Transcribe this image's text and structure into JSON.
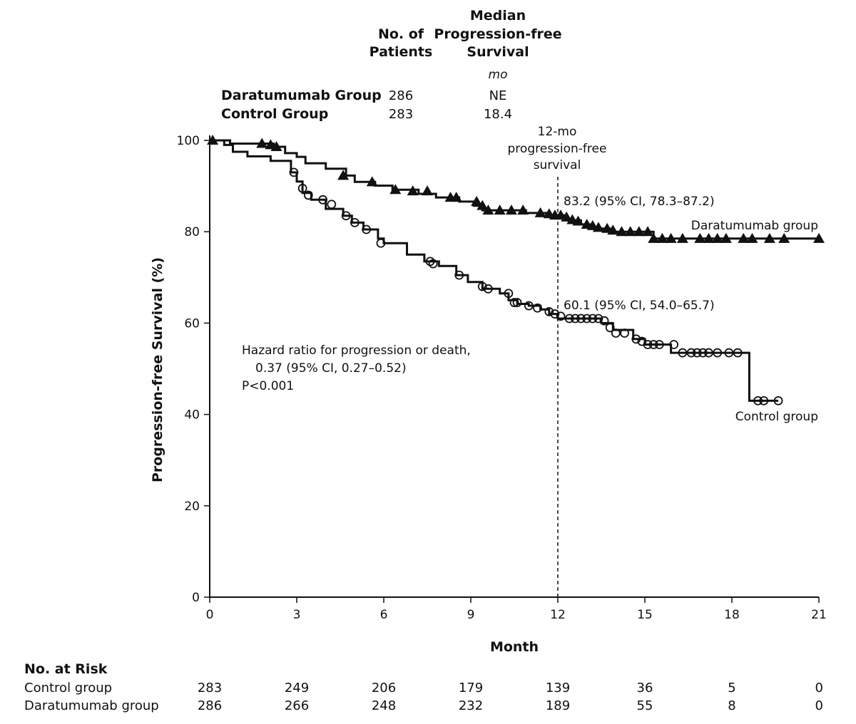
{
  "header": {
    "col_patients": [
      "No. of",
      "Patients"
    ],
    "col_median": [
      "Median",
      "Progression-free",
      "Survival"
    ],
    "unit": "mo",
    "rows": [
      {
        "label": "Daratumumab Group",
        "patients": "286",
        "median": "NE"
      },
      {
        "label": "Control Group",
        "patients": "283",
        "median": "18.4"
      }
    ]
  },
  "annotations": {
    "reference_label": [
      "12-mo",
      "progression-free",
      "survival"
    ],
    "dara_value": "83.2 (95% CI, 78.3–87.2)",
    "control_value": "60.1 (95% CI, 54.0–65.7)",
    "hazard": [
      "Hazard ratio for progression or death,",
      "0.37 (95% CI, 0.27–0.52)",
      "P<0.001"
    ]
  },
  "risk_table": {
    "title": "No. at Risk",
    "months": [
      0,
      3,
      6,
      9,
      12,
      15,
      18,
      21
    ],
    "rows": [
      {
        "label": "Control group",
        "values": [
          "283",
          "249",
          "206",
          "179",
          "139",
          "36",
          "5",
          "0"
        ]
      },
      {
        "label": "Daratumumab group",
        "values": [
          "286",
          "266",
          "248",
          "232",
          "189",
          "55",
          "8",
          "0"
        ]
      }
    ]
  },
  "chart_data": {
    "type": "line",
    "title": "",
    "xlabel": "Month",
    "ylabel": "Progression-free Survival (%)",
    "xlim": [
      0,
      21
    ],
    "ylim": [
      0,
      100
    ],
    "xticks": [
      0,
      3,
      6,
      9,
      12,
      15,
      18,
      21
    ],
    "yticks": [
      0,
      20,
      40,
      60,
      80,
      100
    ],
    "reference_x": 12,
    "series": [
      {
        "name": "Daratumumab group",
        "marker": "triangle",
        "points": [
          [
            0,
            100
          ],
          [
            0.7,
            100
          ],
          [
            0.7,
            99.3
          ],
          [
            2.2,
            99.3
          ],
          [
            2.2,
            98.6
          ],
          [
            2.6,
            98.6
          ],
          [
            2.6,
            97.2
          ],
          [
            3.0,
            97.2
          ],
          [
            3.0,
            96.4
          ],
          [
            3.3,
            96.4
          ],
          [
            3.3,
            95.0
          ],
          [
            4.0,
            95.0
          ],
          [
            4.0,
            93.8
          ],
          [
            4.7,
            93.8
          ],
          [
            4.7,
            92.3
          ],
          [
            5.0,
            92.3
          ],
          [
            5.0,
            90.9
          ],
          [
            5.7,
            90.9
          ],
          [
            5.7,
            90.1
          ],
          [
            6.3,
            90.1
          ],
          [
            6.3,
            89.2
          ],
          [
            7.2,
            89.2
          ],
          [
            7.2,
            88.3
          ],
          [
            7.8,
            88.3
          ],
          [
            7.8,
            87.5
          ],
          [
            8.6,
            87.5
          ],
          [
            8.6,
            86.6
          ],
          [
            9.1,
            86.6
          ],
          [
            9.1,
            85.7
          ],
          [
            9.4,
            85.7
          ],
          [
            9.4,
            84.7
          ],
          [
            10.9,
            84.7
          ],
          [
            10.9,
            84.1
          ],
          [
            11.6,
            84.1
          ],
          [
            11.6,
            83.6
          ],
          [
            12.3,
            83.6
          ],
          [
            12.3,
            82.5
          ],
          [
            12.8,
            82.5
          ],
          [
            12.8,
            81.6
          ],
          [
            13.2,
            81.6
          ],
          [
            13.2,
            80.7
          ],
          [
            13.8,
            80.7
          ],
          [
            13.8,
            80.0
          ],
          [
            15.3,
            80.0
          ],
          [
            15.3,
            78.5
          ],
          [
            21.0,
            78.5
          ]
        ],
        "censored": [
          [
            0.1,
            100
          ],
          [
            1.8,
            99.3
          ],
          [
            2.1,
            99.0
          ],
          [
            2.3,
            98.6
          ],
          [
            4.6,
            92.3
          ],
          [
            5.6,
            90.9
          ],
          [
            6.4,
            89.2
          ],
          [
            7.0,
            88.9
          ],
          [
            7.5,
            88.9
          ],
          [
            8.3,
            87.5
          ],
          [
            8.5,
            87.5
          ],
          [
            9.2,
            86.6
          ],
          [
            9.4,
            85.7
          ],
          [
            9.6,
            84.7
          ],
          [
            10.0,
            84.7
          ],
          [
            10.4,
            84.7
          ],
          [
            10.8,
            84.7
          ],
          [
            11.4,
            84.1
          ],
          [
            11.7,
            83.9
          ],
          [
            11.9,
            83.6
          ],
          [
            12.1,
            83.6
          ],
          [
            12.3,
            83.2
          ],
          [
            12.5,
            82.6
          ],
          [
            12.7,
            82.3
          ],
          [
            13.0,
            81.6
          ],
          [
            13.2,
            81.3
          ],
          [
            13.4,
            80.9
          ],
          [
            13.7,
            80.7
          ],
          [
            13.9,
            80.3
          ],
          [
            14.2,
            80.0
          ],
          [
            14.5,
            80.0
          ],
          [
            14.8,
            80.0
          ],
          [
            15.1,
            80.0
          ],
          [
            15.3,
            78.5
          ],
          [
            15.6,
            78.5
          ],
          [
            15.9,
            78.5
          ],
          [
            16.3,
            78.5
          ],
          [
            16.9,
            78.5
          ],
          [
            17.2,
            78.5
          ],
          [
            17.5,
            78.5
          ],
          [
            17.8,
            78.5
          ],
          [
            18.4,
            78.5
          ],
          [
            18.7,
            78.5
          ],
          [
            19.3,
            78.5
          ],
          [
            19.8,
            78.5
          ],
          [
            21.0,
            78.5
          ]
        ]
      },
      {
        "name": "Control group",
        "marker": "circle",
        "points": [
          [
            0,
            100
          ],
          [
            0.5,
            100
          ],
          [
            0.5,
            99.0
          ],
          [
            0.8,
            99.0
          ],
          [
            0.8,
            97.5
          ],
          [
            1.3,
            97.5
          ],
          [
            1.3,
            96.5
          ],
          [
            2.1,
            96.5
          ],
          [
            2.1,
            95.5
          ],
          [
            2.8,
            95.5
          ],
          [
            2.8,
            93.0
          ],
          [
            3.0,
            93.0
          ],
          [
            3.0,
            91.0
          ],
          [
            3.2,
            91.0
          ],
          [
            3.2,
            88.5
          ],
          [
            3.5,
            88.5
          ],
          [
            3.5,
            87.0
          ],
          [
            4.0,
            87.0
          ],
          [
            4.0,
            85.0
          ],
          [
            4.6,
            85.0
          ],
          [
            4.6,
            83.5
          ],
          [
            4.9,
            83.5
          ],
          [
            4.9,
            82.0
          ],
          [
            5.3,
            82.0
          ],
          [
            5.3,
            80.5
          ],
          [
            5.8,
            80.5
          ],
          [
            5.8,
            78.5
          ],
          [
            6.0,
            78.5
          ],
          [
            6.0,
            77.5
          ],
          [
            6.8,
            77.5
          ],
          [
            6.8,
            75.0
          ],
          [
            7.4,
            75.0
          ],
          [
            7.4,
            73.5
          ],
          [
            7.9,
            73.5
          ],
          [
            7.9,
            72.5
          ],
          [
            8.5,
            72.5
          ],
          [
            8.5,
            70.5
          ],
          [
            8.9,
            70.5
          ],
          [
            8.9,
            69.0
          ],
          [
            9.4,
            69.0
          ],
          [
            9.4,
            67.5
          ],
          [
            10.0,
            67.5
          ],
          [
            10.0,
            66.5
          ],
          [
            10.3,
            66.5
          ],
          [
            10.3,
            65.0
          ],
          [
            10.6,
            65.0
          ],
          [
            10.6,
            64.2
          ],
          [
            11.0,
            64.2
          ],
          [
            11.0,
            63.8
          ],
          [
            11.4,
            63.8
          ],
          [
            11.4,
            63.0
          ],
          [
            11.7,
            63.0
          ],
          [
            11.7,
            62.0
          ],
          [
            12.0,
            62.0
          ],
          [
            12.0,
            61.0
          ],
          [
            13.5,
            61.0
          ],
          [
            13.5,
            60.0
          ],
          [
            13.9,
            60.0
          ],
          [
            13.9,
            58.5
          ],
          [
            14.6,
            58.5
          ],
          [
            14.6,
            56.5
          ],
          [
            15.0,
            56.5
          ],
          [
            15.0,
            55.3
          ],
          [
            15.9,
            55.3
          ],
          [
            15.9,
            53.5
          ],
          [
            18.6,
            53.5
          ],
          [
            18.6,
            43.0
          ],
          [
            19.6,
            43.0
          ]
        ],
        "censored": [
          [
            2.9,
            93.0
          ],
          [
            3.2,
            89.5
          ],
          [
            3.4,
            88.0
          ],
          [
            3.9,
            87.0
          ],
          [
            4.2,
            86.0
          ],
          [
            4.7,
            83.5
          ],
          [
            5.0,
            82.0
          ],
          [
            5.4,
            80.5
          ],
          [
            5.9,
            77.5
          ],
          [
            7.6,
            73.5
          ],
          [
            7.7,
            73.0
          ],
          [
            8.6,
            70.5
          ],
          [
            9.4,
            68.0
          ],
          [
            9.6,
            67.5
          ],
          [
            10.3,
            66.5
          ],
          [
            10.5,
            64.5
          ],
          [
            10.6,
            64.5
          ],
          [
            11.0,
            63.8
          ],
          [
            11.3,
            63.3
          ],
          [
            11.7,
            62.5
          ],
          [
            11.9,
            62.0
          ],
          [
            12.1,
            61.5
          ],
          [
            12.4,
            61.0
          ],
          [
            12.6,
            61.0
          ],
          [
            12.8,
            61.0
          ],
          [
            13.0,
            61.0
          ],
          [
            13.2,
            61.0
          ],
          [
            13.4,
            61.0
          ],
          [
            13.6,
            60.5
          ],
          [
            13.8,
            59.0
          ],
          [
            14.0,
            57.8
          ],
          [
            14.3,
            57.8
          ],
          [
            14.7,
            56.5
          ],
          [
            14.9,
            56.0
          ],
          [
            15.1,
            55.3
          ],
          [
            15.3,
            55.3
          ],
          [
            15.5,
            55.3
          ],
          [
            16.0,
            55.3
          ],
          [
            16.3,
            53.5
          ],
          [
            16.6,
            53.5
          ],
          [
            16.8,
            53.5
          ],
          [
            17.0,
            53.5
          ],
          [
            17.2,
            53.5
          ],
          [
            17.5,
            53.5
          ],
          [
            17.9,
            53.5
          ],
          [
            18.2,
            53.5
          ],
          [
            18.9,
            43.0
          ],
          [
            19.1,
            43.0
          ],
          [
            19.6,
            43.0
          ]
        ]
      }
    ]
  }
}
